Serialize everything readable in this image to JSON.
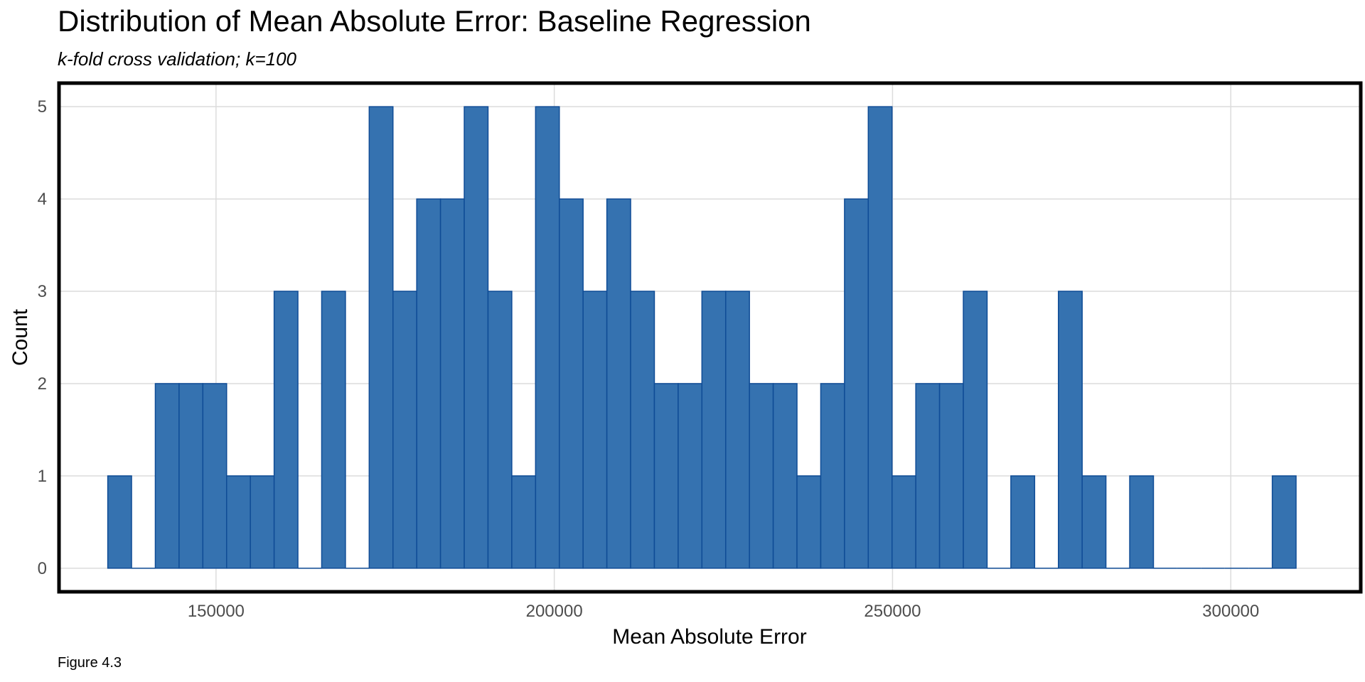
{
  "title": "Distribution of Mean Absolute Error: Baseline Regression",
  "subtitle": "k-fold cross validation; k=100",
  "caption": "Figure 4.3",
  "chart_data": {
    "type": "bar",
    "title": "Distribution of Mean Absolute Error: Baseline Regression",
    "subtitle": "k-fold cross validation; k=100",
    "xlabel": "Mean Absolute Error",
    "ylabel": "Count",
    "xlim": [
      127000,
      319000
    ],
    "ylim": [
      -0.24,
      5.24
    ],
    "x_ticks": [
      150000,
      200000,
      250000,
      300000
    ],
    "y_ticks": [
      0,
      1,
      2,
      3,
      4,
      5
    ],
    "bin_width": 3513,
    "bin_start": 134000,
    "values": [
      1,
      0,
      2,
      2,
      2,
      1,
      1,
      3,
      0,
      3,
      0,
      5,
      3,
      4,
      4,
      5,
      3,
      1,
      5,
      4,
      3,
      4,
      3,
      2,
      2,
      3,
      3,
      2,
      2,
      1,
      2,
      4,
      5,
      1,
      2,
      2,
      3,
      0,
      1,
      0,
      3,
      1,
      0,
      1,
      0,
      0,
      0,
      0,
      0,
      1
    ],
    "fill_color": "#3572b0",
    "edge_color": "#0f4c96",
    "grid": true,
    "border": true
  }
}
